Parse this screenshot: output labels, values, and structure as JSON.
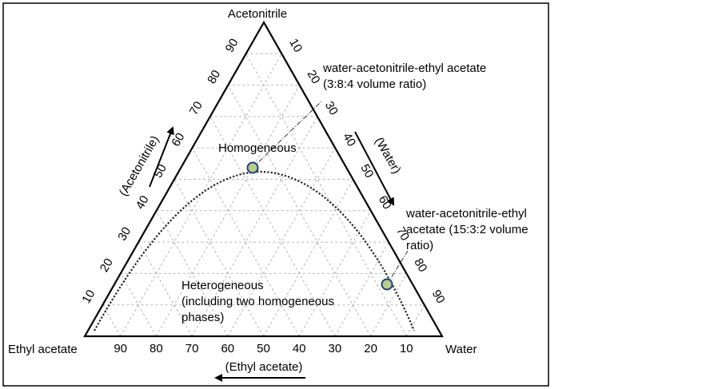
{
  "diagram": {
    "vertices": {
      "top": "Acetonitrile",
      "left": "Ethyl acetate",
      "right": "Water"
    },
    "axes": {
      "left_axis_label": "(Acetonitrile)",
      "right_axis_label": "(Water)",
      "bottom_axis_label": "(Ethyl acetate)",
      "left_ticks": [
        "10",
        "20",
        "30",
        "40",
        "50",
        "60",
        "70",
        "80",
        "90"
      ],
      "right_ticks": [
        "10",
        "20",
        "30",
        "40",
        "50",
        "60",
        "70",
        "80",
        "90"
      ],
      "bottom_ticks": [
        "90",
        "80",
        "70",
        "60",
        "50",
        "40",
        "30",
        "20",
        "10"
      ]
    },
    "regions": {
      "homogeneous": "Homogeneous",
      "heterogeneous_line1": "Heterogeneous",
      "heterogeneous_line2": "(including two homogeneous",
      "heterogeneous_line3": "phases)"
    },
    "points": [
      {
        "composition": {
          "water": 3,
          "acetonitrile": 8,
          "ethyl_acetate": 4
        },
        "label_line1": "water-acetonitrile-ethyl acetate",
        "label_line2": "(3:8:4 volume ratio)"
      },
      {
        "composition": {
          "water": 15,
          "acetonitrile": 3,
          "ethyl_acetate": 2
        },
        "label_line1": "water-acetonitrile-ethyl",
        "label_line2": "acetate (15:3:2 volume",
        "label_line3": "ratio)"
      }
    ],
    "colors": {
      "point_fill": "#b5d08a",
      "point_stroke": "#1f3f7a",
      "grid": "#b5b5b5",
      "frame": "#000000"
    }
  }
}
